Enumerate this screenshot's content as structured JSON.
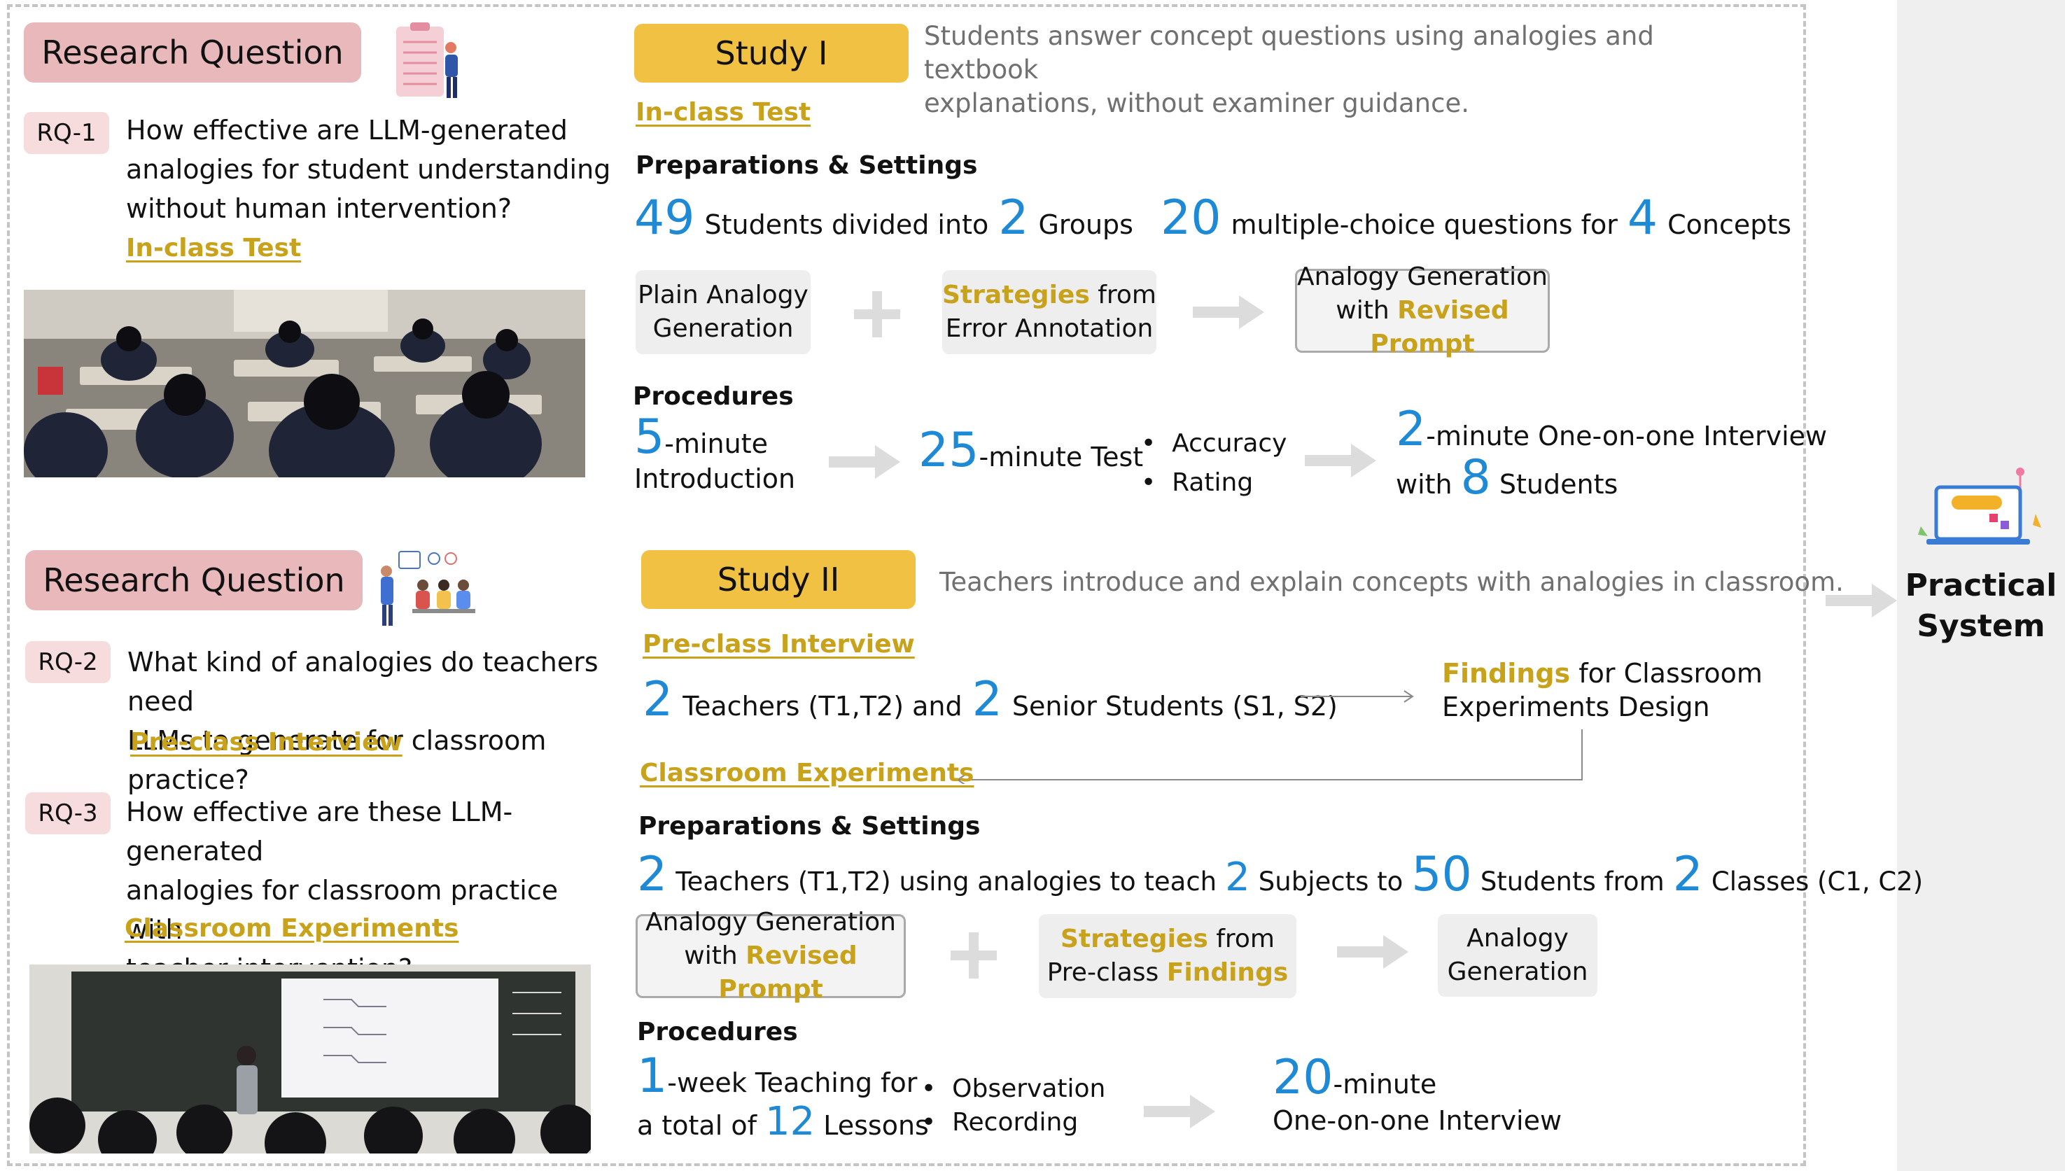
{
  "rq_section_title": "Research Question",
  "rq": [
    {
      "badge": "RQ-1",
      "lines": [
        "How effective are LLM-generated",
        "analogies for student understanding",
        "without human intervention?"
      ],
      "link": "In-class Test"
    },
    {
      "badge": "RQ-2",
      "lines": [
        "What kind of analogies do teachers need",
        "LLMs to generate for classroom practice?"
      ],
      "link": "Pre-class Interview"
    },
    {
      "badge": "RQ-3",
      "lines": [
        "How effective are these LLM-generated",
        "analogies for classroom practice with",
        "teacher intervention?"
      ],
      "link": "Classroom Experiments"
    }
  ],
  "study1": {
    "title": "Study I",
    "desc": [
      "Students answer concept questions using analogies and textbook",
      "explanations, without examiner guidance."
    ],
    "link": "In-class Test",
    "prep_title": "Preparations & Settings",
    "prep": {
      "n_students": "49",
      "t1": "Students divided into",
      "n_groups": "2",
      "t2": "Groups",
      "n_questions": "20",
      "t3": "multiple-choice questions for",
      "n_concepts": "4",
      "t4": "Concepts"
    },
    "box1": [
      "Plain Analogy",
      "Generation"
    ],
    "box2": {
      "gold": "Strategies",
      "rest1": "from",
      "line2": "Error Annotation"
    },
    "box3": {
      "line1": "Analogy Generation",
      "pre": "with",
      "gold": "Revised Prompt"
    },
    "proc_title": "Procedures",
    "proc": {
      "n_intro": "5",
      "intro1": "-minute",
      "intro2": "Introduction",
      "n_test": "25",
      "test": "-minute Test",
      "bullet1": "Accuracy",
      "bullet2": "Rating",
      "n_interview": "2",
      "interview1": "-minute One-on-one Interview",
      "with": "with",
      "n_students": "8",
      "students": "Students"
    }
  },
  "study2": {
    "title": "Study II",
    "desc": "Teachers  introduce and explain concepts with analogies in classroom.",
    "link1": "Pre-class Interview",
    "interview": {
      "n_teachers": "2",
      "t1": "Teachers (T1,T2)  and",
      "n_seniors": "2",
      "t2": "Senior Students (S1, S2)"
    },
    "findings": {
      "gold": "Findings",
      "rest": "for Classroom",
      "line2": "Experiments Design"
    },
    "link2": "Classroom Experiments",
    "prep_title": "Preparations & Settings",
    "prep": {
      "n_teachers": "2",
      "t1": "Teachers (T1,T2) using analogies to teach",
      "n_subjects": "2",
      "t2": "Subjects to",
      "n_students": "50",
      "t3": "Students from",
      "n_classes": "2",
      "t4": "Classes (C1, C2)"
    },
    "box1": {
      "line1": "Analogy Generation",
      "pre": "with",
      "gold": "Revised Prompt"
    },
    "box2": {
      "gold1": "Strategies",
      "rest1": "from",
      "pre2": "Pre-class",
      "gold2": "Findings"
    },
    "box3": [
      "Analogy",
      "Generation"
    ],
    "proc_title": "Procedures",
    "proc": {
      "n_week": "1",
      "w1": "-week Teaching for",
      "w2": "a total of",
      "n_lessons": "12",
      "w3": "Lessons",
      "bullet1": "Observation",
      "bullet2": "Recording",
      "n_min": "20",
      "m1": "-minute",
      "m2": "One-on-one Interview"
    }
  },
  "system": {
    "line1": "Practical",
    "line2": "System"
  },
  "colors": {
    "accent_blue": "#1e8ad6",
    "gold": "#c8a21a",
    "study_yellow": "#f0c142",
    "rq_pink": "#e9b8bb"
  }
}
